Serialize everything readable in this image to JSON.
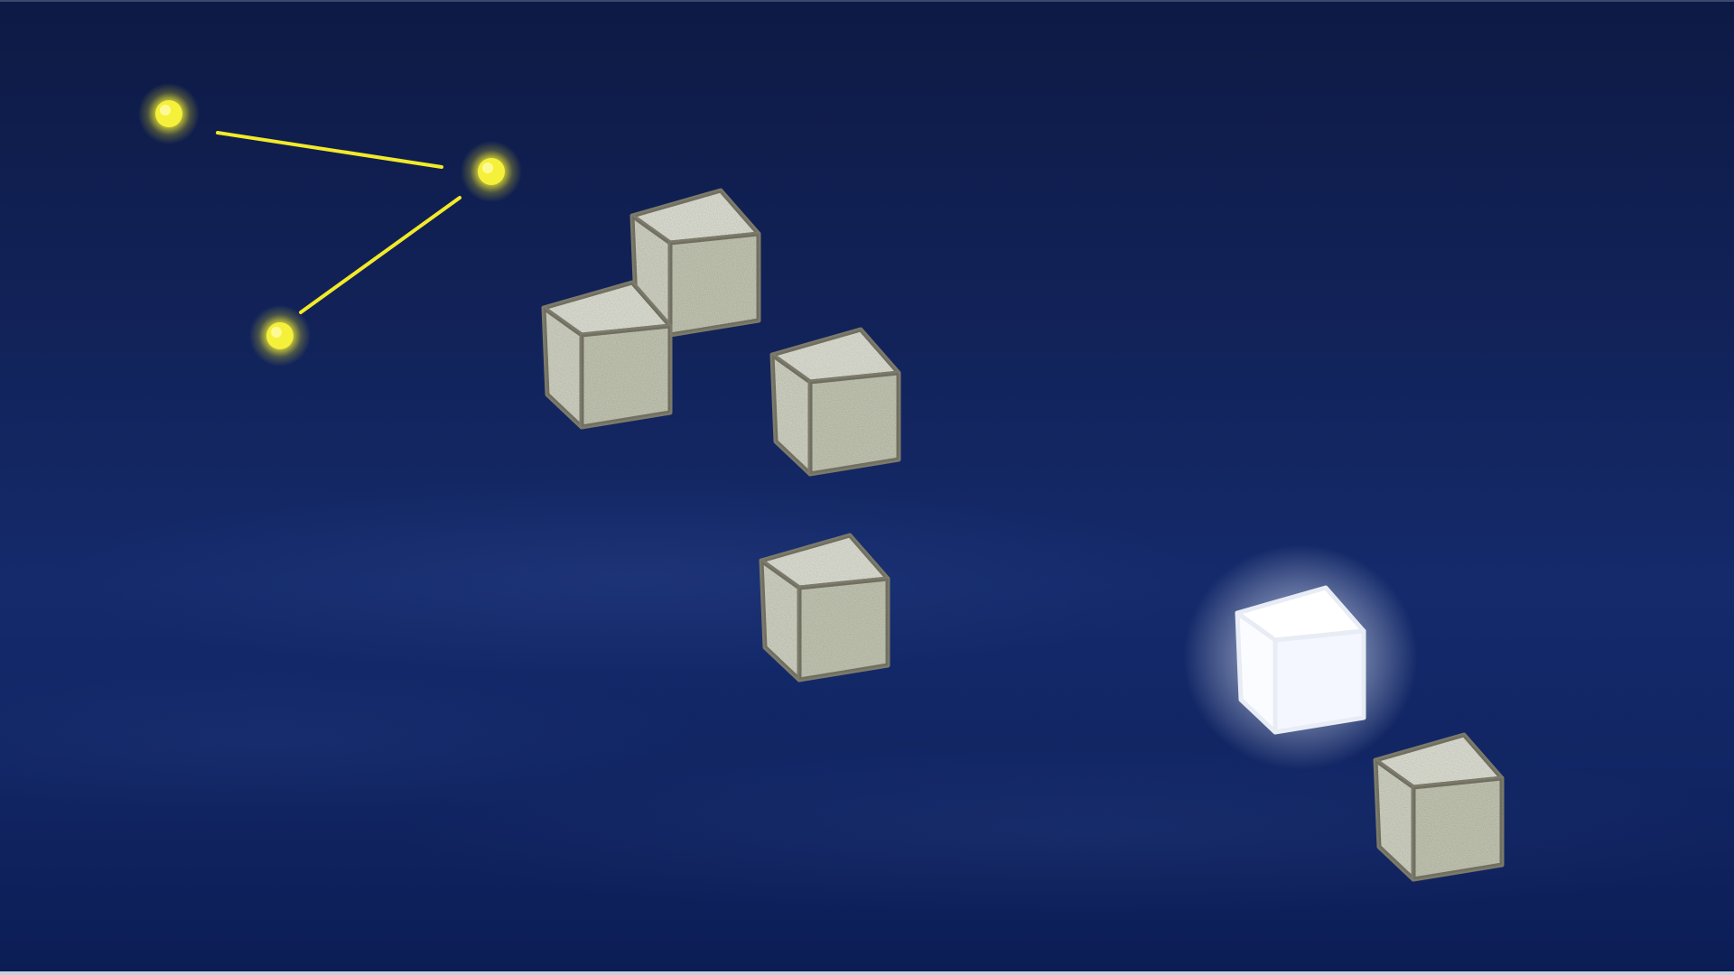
{
  "scene": {
    "background_top": "#0e1a45",
    "background_bottom": "#0c1d55",
    "star_color": "#f5f03a",
    "line_color": "#f2ea2a",
    "cube_face_top": "#e4e6da",
    "cube_face_left": "#d6d8c8",
    "cube_face_right": "#c9ccb8",
    "cube_edge": "#7c7a6a",
    "glow_color": "#ffffff"
  },
  "constellation": {
    "stars": [
      {
        "id": "a",
        "icon": "star-dot-icon"
      },
      {
        "id": "b",
        "icon": "star-dot-icon"
      },
      {
        "id": "c",
        "icon": "star-dot-icon"
      }
    ],
    "links": [
      [
        "a",
        "b"
      ],
      [
        "b",
        "c"
      ]
    ]
  },
  "blocks": [
    {
      "id": "1",
      "state": "normal"
    },
    {
      "id": "2",
      "state": "normal"
    },
    {
      "id": "3",
      "state": "normal"
    },
    {
      "id": "4",
      "state": "normal"
    },
    {
      "id": "5",
      "state": "glowing"
    },
    {
      "id": "6",
      "state": "normal"
    }
  ]
}
